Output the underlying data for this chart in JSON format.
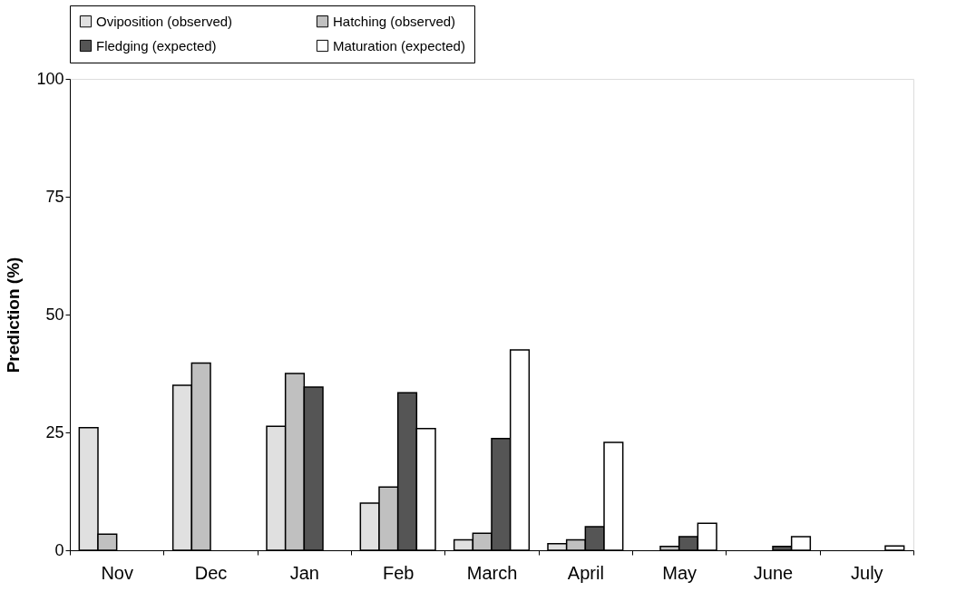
{
  "chart_data": {
    "type": "bar",
    "ylabel": "Prediction (%)",
    "categories": [
      "Nov",
      "Dec",
      "Jan",
      "Feb",
      "March",
      "April",
      "May",
      "June",
      "July"
    ],
    "series": [
      {
        "name": "Oviposition (observed)",
        "color": "#e0e0e0",
        "values": [
          26,
          35,
          26.3,
          10,
          2.2,
          1.4,
          null,
          null,
          null
        ]
      },
      {
        "name": "Hatching (observed)",
        "color": "#c0c0c0",
        "values": [
          3.4,
          39.7,
          37.5,
          13.4,
          3.6,
          2.2,
          0.8,
          null,
          null
        ]
      },
      {
        "name": "Fledging (expected)",
        "color": "#555555",
        "values": [
          null,
          null,
          34.6,
          33.4,
          23.7,
          5,
          2.9,
          0.8,
          null
        ]
      },
      {
        "name": "Maturation (expected)",
        "color": "#ffffff",
        "values": [
          null,
          null,
          null,
          25.8,
          42.5,
          22.9,
          5.7,
          2.9,
          0.9
        ]
      }
    ],
    "ylim": [
      0,
      100
    ],
    "yticks": [
      0,
      25,
      50,
      75,
      100
    ],
    "grid": false,
    "legend": "top"
  }
}
